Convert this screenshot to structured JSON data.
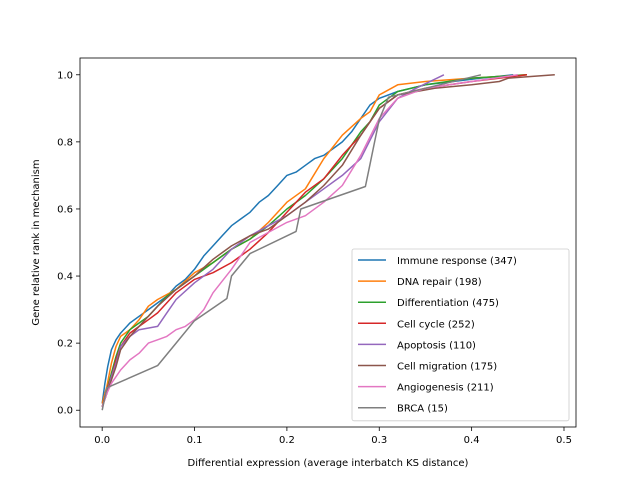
{
  "chart_data": {
    "type": "line",
    "title": "",
    "xlabel": "Differential expression (average interbatch KS distance)",
    "ylabel": "Gene relative rank in mechanism",
    "xlim": [
      -0.024,
      0.513
    ],
    "ylim": [
      -0.05,
      1.05
    ],
    "xticks": [
      0.0,
      0.1,
      0.2,
      0.3,
      0.4,
      0.5
    ],
    "xtick_labels": [
      "0.0",
      "0.1",
      "0.2",
      "0.3",
      "0.4",
      "0.5"
    ],
    "yticks": [
      0.0,
      0.2,
      0.4,
      0.6,
      0.8,
      1.0
    ],
    "ytick_labels": [
      "0.0",
      "0.2",
      "0.4",
      "0.6",
      "0.8",
      "1.0"
    ],
    "grid": false,
    "legend_position": "lower-right",
    "series": [
      {
        "name": "Immune response (347)",
        "color": "#1f77b4",
        "points": [
          [
            0,
            0.02
          ],
          [
            0.003,
            0.08
          ],
          [
            0.006,
            0.13
          ],
          [
            0.01,
            0.18
          ],
          [
            0.015,
            0.21
          ],
          [
            0.02,
            0.23
          ],
          [
            0.03,
            0.26
          ],
          [
            0.04,
            0.28
          ],
          [
            0.05,
            0.3
          ],
          [
            0.06,
            0.32
          ],
          [
            0.07,
            0.34
          ],
          [
            0.08,
            0.37
          ],
          [
            0.09,
            0.39
          ],
          [
            0.1,
            0.42
          ],
          [
            0.11,
            0.46
          ],
          [
            0.12,
            0.49
          ],
          [
            0.13,
            0.52
          ],
          [
            0.14,
            0.55
          ],
          [
            0.15,
            0.57
          ],
          [
            0.16,
            0.59
          ],
          [
            0.17,
            0.62
          ],
          [
            0.18,
            0.64
          ],
          [
            0.19,
            0.67
          ],
          [
            0.2,
            0.7
          ],
          [
            0.21,
            0.71
          ],
          [
            0.22,
            0.73
          ],
          [
            0.23,
            0.75
          ],
          [
            0.24,
            0.76
          ],
          [
            0.25,
            0.78
          ],
          [
            0.26,
            0.8
          ],
          [
            0.27,
            0.83
          ],
          [
            0.28,
            0.87
          ],
          [
            0.29,
            0.91
          ],
          [
            0.3,
            0.93
          ],
          [
            0.32,
            0.95
          ],
          [
            0.35,
            0.97
          ],
          [
            0.38,
            0.98
          ],
          [
            0.41,
            0.99
          ],
          [
            0.445,
            1.0
          ]
        ]
      },
      {
        "name": "DNA repair (198)",
        "color": "#ff7f0e",
        "points": [
          [
            0,
            0.02
          ],
          [
            0.005,
            0.07
          ],
          [
            0.01,
            0.14
          ],
          [
            0.015,
            0.19
          ],
          [
            0.02,
            0.22
          ],
          [
            0.03,
            0.24
          ],
          [
            0.04,
            0.27
          ],
          [
            0.05,
            0.31
          ],
          [
            0.06,
            0.33
          ],
          [
            0.08,
            0.36
          ],
          [
            0.1,
            0.41
          ],
          [
            0.12,
            0.44
          ],
          [
            0.14,
            0.48
          ],
          [
            0.16,
            0.51
          ],
          [
            0.18,
            0.56
          ],
          [
            0.2,
            0.62
          ],
          [
            0.22,
            0.66
          ],
          [
            0.24,
            0.75
          ],
          [
            0.26,
            0.82
          ],
          [
            0.28,
            0.87
          ],
          [
            0.29,
            0.89
          ],
          [
            0.3,
            0.94
          ],
          [
            0.32,
            0.97
          ],
          [
            0.35,
            0.98
          ],
          [
            0.4,
            0.99
          ],
          [
            0.46,
            1.0
          ]
        ]
      },
      {
        "name": "Differentiation (475)",
        "color": "#2ca02c",
        "points": [
          [
            0,
            0.01
          ],
          [
            0.005,
            0.06
          ],
          [
            0.01,
            0.11
          ],
          [
            0.015,
            0.16
          ],
          [
            0.02,
            0.2
          ],
          [
            0.03,
            0.24
          ],
          [
            0.04,
            0.26
          ],
          [
            0.05,
            0.28
          ],
          [
            0.06,
            0.31
          ],
          [
            0.07,
            0.34
          ],
          [
            0.08,
            0.36
          ],
          [
            0.1,
            0.4
          ],
          [
            0.12,
            0.44
          ],
          [
            0.14,
            0.48
          ],
          [
            0.16,
            0.51
          ],
          [
            0.18,
            0.55
          ],
          [
            0.2,
            0.6
          ],
          [
            0.22,
            0.64
          ],
          [
            0.24,
            0.69
          ],
          [
            0.26,
            0.75
          ],
          [
            0.28,
            0.83
          ],
          [
            0.29,
            0.86
          ],
          [
            0.3,
            0.91
          ],
          [
            0.32,
            0.95
          ],
          [
            0.35,
            0.97
          ],
          [
            0.4,
            0.99
          ],
          [
            0.46,
            1.0
          ]
        ]
      },
      {
        "name": "Cell cycle (252)",
        "color": "#d62728",
        "points": [
          [
            0,
            0.01
          ],
          [
            0.005,
            0.06
          ],
          [
            0.01,
            0.1
          ],
          [
            0.015,
            0.15
          ],
          [
            0.02,
            0.19
          ],
          [
            0.03,
            0.23
          ],
          [
            0.04,
            0.25
          ],
          [
            0.05,
            0.27
          ],
          [
            0.06,
            0.29
          ],
          [
            0.07,
            0.32
          ],
          [
            0.08,
            0.35
          ],
          [
            0.1,
            0.39
          ],
          [
            0.12,
            0.41
          ],
          [
            0.14,
            0.44
          ],
          [
            0.16,
            0.48
          ],
          [
            0.18,
            0.53
          ],
          [
            0.2,
            0.59
          ],
          [
            0.22,
            0.65
          ],
          [
            0.24,
            0.69
          ],
          [
            0.26,
            0.76
          ],
          [
            0.28,
            0.82
          ],
          [
            0.3,
            0.9
          ],
          [
            0.32,
            0.94
          ],
          [
            0.35,
            0.96
          ],
          [
            0.4,
            0.98
          ],
          [
            0.46,
            1.0
          ]
        ]
      },
      {
        "name": "Apoptosis (110)",
        "color": "#9467bd",
        "points": [
          [
            0,
            0.01
          ],
          [
            0.005,
            0.05
          ],
          [
            0.01,
            0.1
          ],
          [
            0.015,
            0.14
          ],
          [
            0.02,
            0.19
          ],
          [
            0.03,
            0.22
          ],
          [
            0.04,
            0.24
          ],
          [
            0.06,
            0.25
          ],
          [
            0.07,
            0.29
          ],
          [
            0.08,
            0.33
          ],
          [
            0.1,
            0.38
          ],
          [
            0.12,
            0.42
          ],
          [
            0.14,
            0.48
          ],
          [
            0.16,
            0.52
          ],
          [
            0.18,
            0.55
          ],
          [
            0.2,
            0.58
          ],
          [
            0.22,
            0.62
          ],
          [
            0.24,
            0.66
          ],
          [
            0.26,
            0.7
          ],
          [
            0.28,
            0.75
          ],
          [
            0.3,
            0.86
          ],
          [
            0.32,
            0.93
          ],
          [
            0.34,
            0.96
          ],
          [
            0.37,
            1.0
          ]
        ]
      },
      {
        "name": "Cell migration (175)",
        "color": "#8c564b",
        "points": [
          [
            0,
            0.01
          ],
          [
            0.005,
            0.05
          ],
          [
            0.01,
            0.09
          ],
          [
            0.015,
            0.13
          ],
          [
            0.02,
            0.18
          ],
          [
            0.03,
            0.22
          ],
          [
            0.04,
            0.25
          ],
          [
            0.05,
            0.28
          ],
          [
            0.06,
            0.31
          ],
          [
            0.08,
            0.36
          ],
          [
            0.1,
            0.4
          ],
          [
            0.12,
            0.45
          ],
          [
            0.14,
            0.49
          ],
          [
            0.16,
            0.52
          ],
          [
            0.18,
            0.54
          ],
          [
            0.2,
            0.58
          ],
          [
            0.22,
            0.62
          ],
          [
            0.24,
            0.67
          ],
          [
            0.26,
            0.73
          ],
          [
            0.28,
            0.82
          ],
          [
            0.3,
            0.9
          ],
          [
            0.32,
            0.94
          ],
          [
            0.36,
            0.96
          ],
          [
            0.4,
            0.97
          ],
          [
            0.43,
            0.98
          ],
          [
            0.44,
            0.99
          ],
          [
            0.49,
            1.0
          ]
        ]
      },
      {
        "name": "Angiogenesis (211)",
        "color": "#e377c2",
        "points": [
          [
            0,
            0.01
          ],
          [
            0.005,
            0.05
          ],
          [
            0.01,
            0.08
          ],
          [
            0.02,
            0.12
          ],
          [
            0.03,
            0.15
          ],
          [
            0.04,
            0.17
          ],
          [
            0.05,
            0.2
          ],
          [
            0.06,
            0.21
          ],
          [
            0.07,
            0.22
          ],
          [
            0.08,
            0.24
          ],
          [
            0.09,
            0.25
          ],
          [
            0.1,
            0.27
          ],
          [
            0.11,
            0.3
          ],
          [
            0.12,
            0.35
          ],
          [
            0.14,
            0.42
          ],
          [
            0.16,
            0.5
          ],
          [
            0.18,
            0.53
          ],
          [
            0.2,
            0.56
          ],
          [
            0.22,
            0.58
          ],
          [
            0.24,
            0.62
          ],
          [
            0.26,
            0.67
          ],
          [
            0.28,
            0.76
          ],
          [
            0.3,
            0.87
          ],
          [
            0.32,
            0.93
          ],
          [
            0.35,
            0.96
          ],
          [
            0.4,
            0.98
          ],
          [
            0.45,
            1.0
          ]
        ]
      },
      {
        "name": "BRCA (15)",
        "color": "#7f7f7f",
        "points": [
          [
            0,
            0.0
          ],
          [
            0.005,
            0.067
          ],
          [
            0.06,
            0.133
          ],
          [
            0.08,
            0.2
          ],
          [
            0.1,
            0.267
          ],
          [
            0.135,
            0.333
          ],
          [
            0.14,
            0.4
          ],
          [
            0.16,
            0.467
          ],
          [
            0.21,
            0.533
          ],
          [
            0.215,
            0.6
          ],
          [
            0.285,
            0.667
          ],
          [
            0.29,
            0.733
          ],
          [
            0.295,
            0.8
          ],
          [
            0.3,
            0.867
          ],
          [
            0.31,
            0.933
          ],
          [
            0.41,
            1.0
          ]
        ]
      }
    ]
  }
}
